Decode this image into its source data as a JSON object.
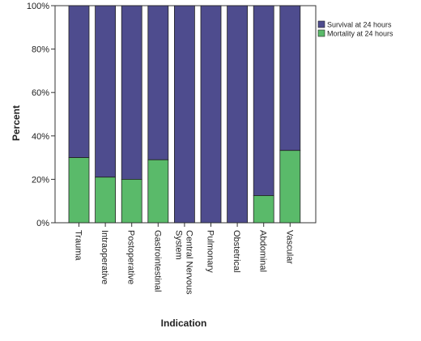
{
  "chart_data": {
    "type": "bar",
    "stacked": true,
    "percent": true,
    "title": "",
    "xlabel": "Indication",
    "ylabel": "Percent",
    "ylim": [
      0,
      100
    ],
    "yticks": [
      "0%",
      "20%",
      "40%",
      "60%",
      "80%",
      "100%"
    ],
    "yticks_values": [
      0,
      20,
      40,
      60,
      80,
      100
    ],
    "grid": false,
    "legend_position": "top-right",
    "categories": [
      "Trauma",
      "Intraoperative",
      "Postoperative",
      "Gastrointestinal",
      "Central Nervous System",
      "Pulmonary",
      "Obstetrical",
      "Abdominal",
      "Vascular"
    ],
    "category_lines": [
      [
        "Trauma"
      ],
      [
        "Intraoperative"
      ],
      [
        "Postoperative"
      ],
      [
        "Gastrointestinal"
      ],
      [
        "Central Nervous",
        "System"
      ],
      [
        "Pulmonary"
      ],
      [
        "Obstetrical"
      ],
      [
        "Abdominal"
      ],
      [
        "Vascular"
      ]
    ],
    "series": [
      {
        "name": "Mortality at 24 hours",
        "color": "#5aba6a",
        "values": [
          30,
          21,
          20,
          29,
          0,
          0,
          0,
          12.5,
          33.3
        ]
      },
      {
        "name": "Survival at 24 hours",
        "color": "#4e4c8e",
        "values": [
          70,
          79,
          80,
          71,
          100,
          100,
          100,
          87.5,
          66.7
        ]
      }
    ],
    "legend_order": [
      "Survival at 24 hours",
      "Mortality at 24 hours"
    ]
  }
}
